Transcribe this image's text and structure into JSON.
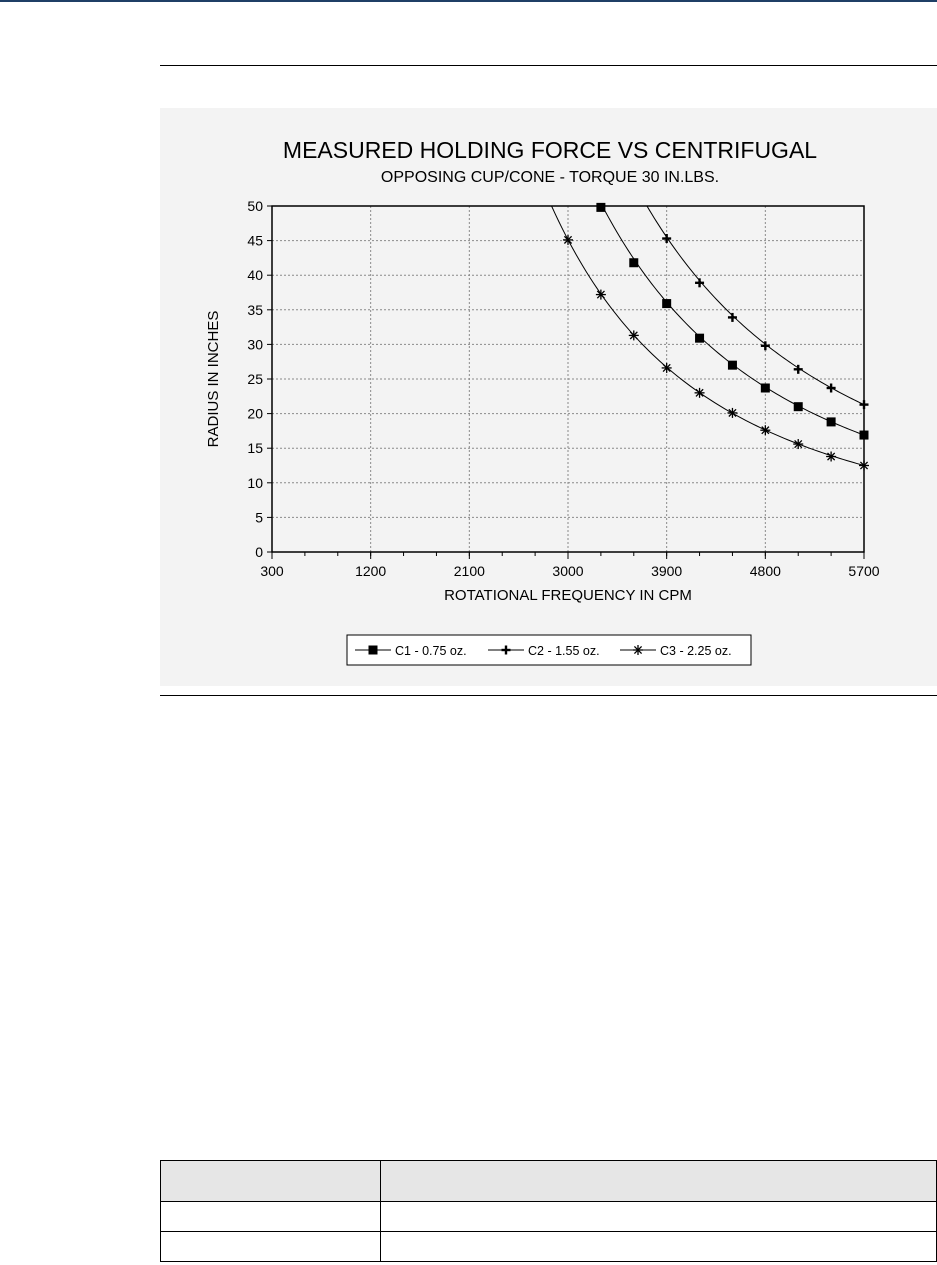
{
  "page": {
    "table": {
      "header": [
        "",
        ""
      ],
      "rows": [
        [
          "",
          ""
        ],
        [
          "",
          ""
        ]
      ]
    }
  },
  "colors": {
    "top_bar": "#1f3f66",
    "figure_background": "#f3f3f3",
    "series": "#000000",
    "grid": "#8a8a8a",
    "table_header": "#e6e6e6"
  },
  "chart_data": {
    "type": "line",
    "title": "MEASURED HOLDING FORCE VS CENTRIFUGAL",
    "subtitle": "OPPOSING CUP/CONE - TORQUE 30 IN.LBS.",
    "xlabel": "ROTATIONAL FREQUENCY IN CPM",
    "ylabel": "RADIUS IN INCHES",
    "xlim": [
      300,
      5700
    ],
    "ylim": [
      0,
      50
    ],
    "xticks": [
      "300",
      "1200",
      "2100",
      "3000",
      "3900",
      "4800",
      "5700"
    ],
    "yticks": [
      "0",
      "5",
      "10",
      "15",
      "20",
      "25",
      "30",
      "35",
      "40",
      "45",
      "50"
    ],
    "grid": true,
    "legend_position": "bottom",
    "series": [
      {
        "name": "C1 - 0.75 oz.",
        "marker": "square",
        "x": [
          3300,
          3600,
          3900,
          4200,
          4500,
          4800,
          5100,
          5400,
          5700
        ],
        "y": [
          49.8,
          41.8,
          35.9,
          30.9,
          27.0,
          23.7,
          21.0,
          18.8,
          16.9
        ]
      },
      {
        "name": "C2 - 1.55 oz.",
        "marker": "plus",
        "x": [
          3900,
          4200,
          4500,
          4800,
          5100,
          5400,
          5700
        ],
        "y": [
          45.3,
          38.9,
          33.9,
          29.8,
          26.4,
          23.7,
          21.3
        ]
      },
      {
        "name": "C3 - 2.25 oz.",
        "marker": "asterisk",
        "x": [
          3000,
          3300,
          3600,
          3900,
          4200,
          4500,
          4800,
          5100,
          5400,
          5700
        ],
        "y": [
          45.1,
          37.2,
          31.3,
          26.6,
          23.0,
          20.1,
          17.6,
          15.6,
          13.8,
          12.5
        ]
      }
    ]
  }
}
